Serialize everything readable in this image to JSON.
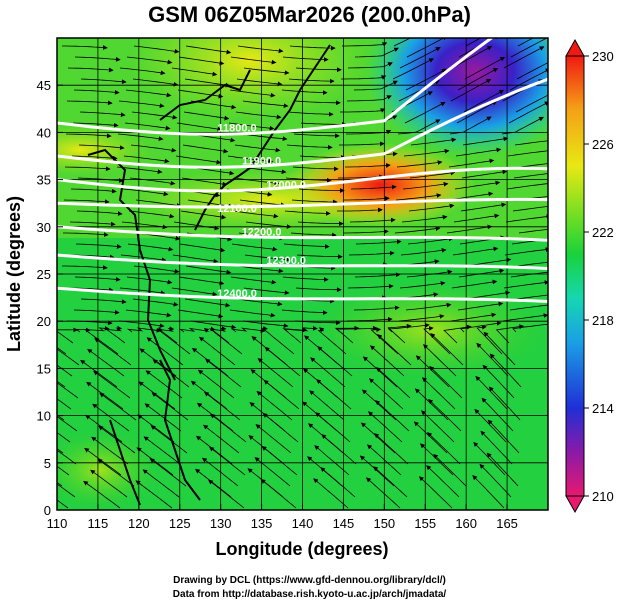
{
  "title": "GSM 06Z05Mar2026 (200.0hPa)",
  "map": {
    "x_label": "Longitude (degrees)",
    "y_label": "Latitude  (degrees)",
    "lon_range": [
      110,
      170
    ],
    "lat_range": [
      0,
      50
    ],
    "lon_ticks": [
      "110",
      "115",
      "120",
      "125",
      "130",
      "135",
      "140",
      "145",
      "150",
      "155",
      "160",
      "165"
    ],
    "lat_ticks": [
      "0",
      "5",
      "10",
      "15",
      "20",
      "25",
      "30",
      "35",
      "40",
      "45"
    ],
    "contour_labels": [
      "11800.0",
      "11900.0",
      "12000.0",
      "12100.0",
      "12200.0",
      "12300.0",
      "12400.0"
    ],
    "colorbar": {
      "min": 210,
      "max": 230,
      "ticks": [
        "230",
        "226",
        "222",
        "218",
        "214",
        "210"
      ],
      "colors": [
        "#e8196e",
        "#6a1ea8",
        "#1f2fd6",
        "#1aa0e6",
        "#15d7b0",
        "#19d23b",
        "#7fe020",
        "#e8e814",
        "#f5a015",
        "#f01a12"
      ]
    }
  },
  "credits": {
    "line1": "Drawing by DCL (https://www.gfd-dennou.org/library/dcl/)",
    "line2": "Data from http://database.rish.kyoto-u.ac.jp/arch/jmadata/"
  }
}
